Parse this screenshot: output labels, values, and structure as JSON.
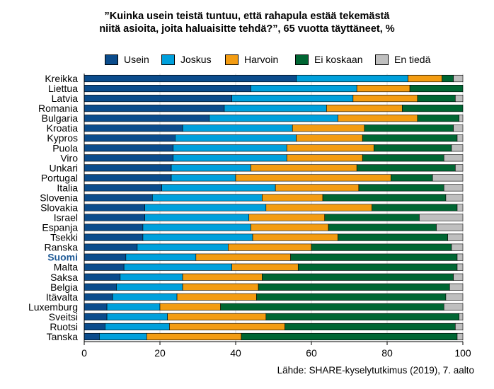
{
  "title_lines": [
    "”Kuinka usein teistä tuntuu, että rahapula estää tekemästä",
    "niitä asioita, joita haluaisitte tehdä?”, 65 vuotta täyttäneet, %"
  ],
  "source": "Lähde: SHARE-kyselytutkimus (2019), 7. aalto",
  "chart_data": {
    "type": "bar",
    "orientation": "horizontal",
    "stacked": true,
    "xlim": [
      0,
      100
    ],
    "x_ticks": [
      0,
      20,
      40,
      60,
      80,
      100
    ],
    "grid": true,
    "legend_position": "top",
    "highlight_category": "Suomi",
    "highlight_color": "#1f5a96",
    "categories": [
      "Kreikka",
      "Liettua",
      "Latvia",
      "Romania",
      "Bulgaria",
      "Kroatia",
      "Kypros",
      "Puola",
      "Viro",
      "Unkari",
      "Portugal",
      "Italia",
      "Slovenia",
      "Slovakia",
      "Israel",
      "Espanja",
      "Tsekki",
      "Ranska",
      "Suomi",
      "Malta",
      "Saksa",
      "Belgia",
      "Itävalta",
      "Luxemburg",
      "Sveitsi",
      "Ruotsi",
      "Tanska"
    ],
    "series": [
      {
        "name": "Usein",
        "color": "#0b4c8c",
        "values": [
          56,
          44,
          39,
          37,
          33,
          26,
          24,
          23.5,
          23.5,
          23,
          23,
          20.5,
          18,
          16,
          16,
          15.5,
          15.5,
          14,
          11,
          10.5,
          9.5,
          8.5,
          7.5,
          6,
          6,
          5.5,
          4
        ]
      },
      {
        "name": "Joskus",
        "color": "#00a0dc",
        "values": [
          29.5,
          28,
          32,
          27,
          34,
          29,
          32,
          30,
          30,
          21,
          17,
          30,
          29,
          32,
          27.5,
          28.5,
          29,
          24,
          18.5,
          28.5,
          16.5,
          17.5,
          17,
          14,
          16,
          17,
          12.5
        ]
      },
      {
        "name": "Harvoin",
        "color": "#f39c12",
        "values": [
          9,
          14,
          17,
          20,
          21,
          19,
          17.5,
          23,
          20,
          28,
          41,
          22,
          16,
          28,
          20,
          20.5,
          22.5,
          22,
          25,
          17.5,
          21,
          20,
          21,
          16,
          26,
          30.5,
          25
        ]
      },
      {
        "name": "Ei koskaan",
        "color": "#006633",
        "values": [
          3,
          14,
          10,
          16,
          11,
          23.5,
          25,
          20.5,
          21.5,
          26,
          11,
          22.5,
          32.5,
          22.5,
          25,
          28.5,
          29,
          37,
          44,
          42,
          50.5,
          50.5,
          50,
          59,
          51,
          45,
          57
        ]
      },
      {
        "name": "En tiedä",
        "color": "#bfbfbf",
        "values": [
          2.5,
          0,
          2,
          0,
          1,
          2.5,
          1.5,
          3,
          5,
          2,
          8,
          5,
          4.5,
          1.5,
          11.5,
          7,
          4,
          3,
          1.5,
          1.5,
          2.5,
          3.5,
          4.5,
          5,
          1,
          2,
          1.5
        ]
      }
    ]
  }
}
